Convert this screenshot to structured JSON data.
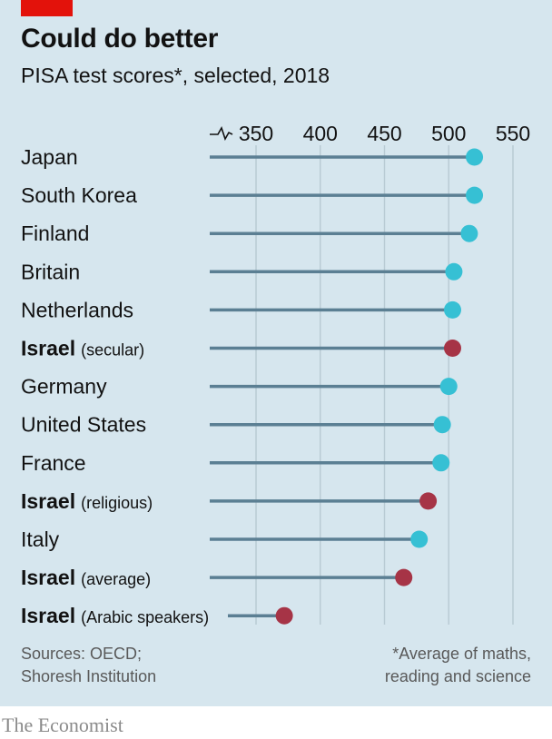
{
  "header": {
    "title": "Could do better",
    "subtitle": "PISA test scores*, selected, 2018"
  },
  "footer": {
    "sources_line1": "Sources: OECD;",
    "sources_line2": "Shoresh Institution",
    "note_line1": "*Average of maths,",
    "note_line2": "reading and science",
    "brand": "The Economist"
  },
  "colors": {
    "background": "#d6e6ee",
    "accent_red": "#e3120b",
    "highlight_dot": "#a63446",
    "default_dot": "#36c0d4",
    "stem": "#5b7f93",
    "grid": "#b9cbd4"
  },
  "chart_data": {
    "type": "dot",
    "title": "Could do better",
    "subtitle": "PISA test scores*, selected, 2018",
    "x_ticks": [
      350,
      400,
      450,
      500,
      550
    ],
    "x_axis_break": true,
    "xlim": [
      350,
      550
    ],
    "grid": true,
    "rows": [
      {
        "name": "Japan",
        "qualifier": "",
        "value": 520,
        "highlight": false
      },
      {
        "name": "South Korea",
        "qualifier": "",
        "value": 520,
        "highlight": false
      },
      {
        "name": "Finland",
        "qualifier": "",
        "value": 516,
        "highlight": false
      },
      {
        "name": "Britain",
        "qualifier": "",
        "value": 504,
        "highlight": false
      },
      {
        "name": "Netherlands",
        "qualifier": "",
        "value": 503,
        "highlight": false
      },
      {
        "name": "Israel",
        "qualifier": "(secular)",
        "value": 503,
        "highlight": true
      },
      {
        "name": "Germany",
        "qualifier": "",
        "value": 500,
        "highlight": false
      },
      {
        "name": "United States",
        "qualifier": "",
        "value": 495,
        "highlight": false
      },
      {
        "name": "France",
        "qualifier": "",
        "value": 494,
        "highlight": false
      },
      {
        "name": "Israel",
        "qualifier": "(religious)",
        "value": 484,
        "highlight": true
      },
      {
        "name": "Italy",
        "qualifier": "",
        "value": 477,
        "highlight": false
      },
      {
        "name": "Israel",
        "qualifier": "(average)",
        "value": 465,
        "highlight": true
      },
      {
        "name": "Israel",
        "qualifier": "(Arabic speakers)",
        "value": 372,
        "highlight": true
      }
    ]
  }
}
